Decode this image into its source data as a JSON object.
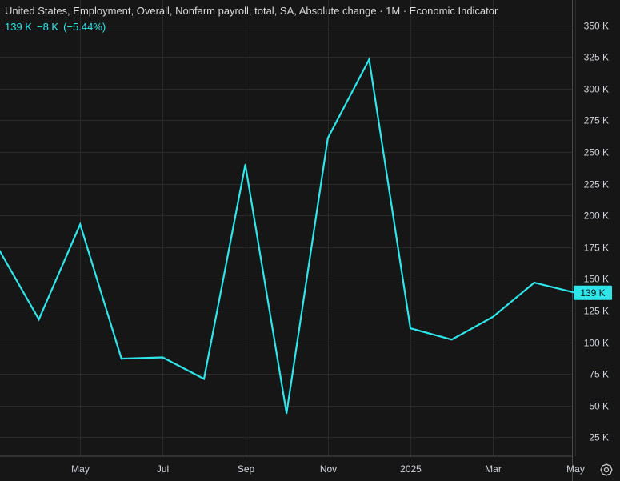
{
  "header": {
    "title": "United States, Employment, Overall, Nonfarm payroll, total, SA, Absolute change · 1M · Economic Indicator",
    "last_value": "139 K",
    "change": "−8 K",
    "change_pct": "(−5.44%)"
  },
  "colors": {
    "background": "#161616",
    "grid": "#2a2a2a",
    "line": "#2ee6ea",
    "text": "#d1d4dc",
    "price_label_bg": "#2ee6ea",
    "price_label_text": "#161616"
  },
  "icons": {
    "settings": "gear-icon"
  },
  "chart_data": {
    "type": "line",
    "title": "United States, Employment, Overall, Nonfarm payroll, total, SA, Absolute change",
    "x": [
      "2024-03",
      "2024-04",
      "2024-05",
      "2024-06",
      "2024-07",
      "2024-08",
      "2024-09",
      "2024-10",
      "2024-11",
      "2024-12",
      "2025-01",
      "2025-02",
      "2025-03",
      "2025-04",
      "2025-05"
    ],
    "series": [
      {
        "values": [
          175,
          118,
          193,
          87,
          88,
          71,
          240,
          44,
          261,
          323,
          111,
          102,
          120,
          147,
          139
        ]
      }
    ],
    "ylim": [
      10,
      370
    ],
    "yticks": [
      25,
      50,
      75,
      100,
      125,
      150,
      175,
      200,
      225,
      250,
      275,
      300,
      325,
      350
    ],
    "ytick_labels": [
      "25 K",
      "50 K",
      "75 K",
      "100 K",
      "125 K",
      "150 K",
      "175 K",
      "200 K",
      "225 K",
      "250 K",
      "275 K",
      "300 K",
      "325 K",
      "350 K"
    ],
    "xtick_labels": [
      {
        "at": "2024-05",
        "label": "May"
      },
      {
        "at": "2024-07",
        "label": "Jul"
      },
      {
        "at": "2024-09",
        "label": "Sep"
      },
      {
        "at": "2024-11",
        "label": "Nov"
      },
      {
        "at": "2025-01",
        "label": "2025"
      },
      {
        "at": "2025-03",
        "label": "Mar"
      },
      {
        "at": "2025-05",
        "label": "May"
      }
    ],
    "last_value_label": "139 K",
    "grid": true,
    "axis_position": "right"
  }
}
